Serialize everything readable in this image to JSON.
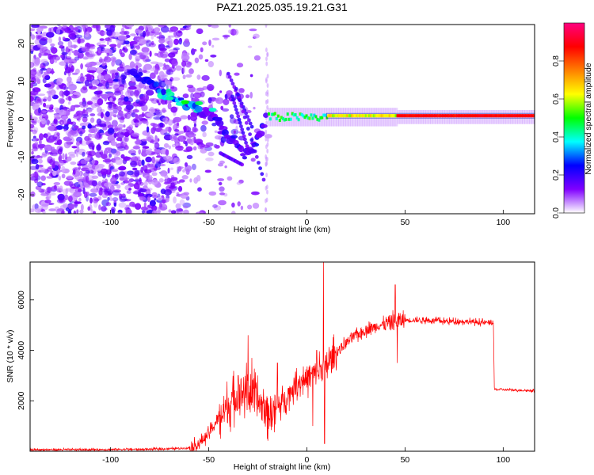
{
  "figure_title": "PAZ1.2025.035.19.21.G31",
  "chart_data": [
    {
      "type": "heatmap",
      "xlabel": "Height of straight line (km)",
      "ylabel": "Frequency (Hz)",
      "xlim": [
        -141,
        116
      ],
      "ylim": [
        -25,
        25
      ],
      "xticks": [
        -100,
        -50,
        0,
        50,
        100
      ],
      "yticks": [
        -20,
        -10,
        0,
        10,
        20
      ],
      "colorbar": {
        "label": "Normalized spectral amplitude",
        "range": [
          0.0,
          1.0
        ],
        "ticks": [
          "0.0",
          "0.2",
          "0.4",
          "0.6",
          "0.8"
        ],
        "colors": [
          "#ffffff",
          "#8000ff",
          "#0000ff",
          "#00ffff",
          "#00ff00",
          "#ffff00",
          "#ff8000",
          "#ff0000",
          "#ff0080"
        ]
      },
      "ridge": {
        "description_points_x": [
          -90,
          -80,
          -70,
          -60,
          -50,
          -40,
          -30,
          -20,
          -10,
          0,
          10,
          20,
          40,
          60,
          80,
          100,
          116
        ],
        "description_points_y": [
          13,
          9,
          6,
          4,
          1,
          -4,
          -10,
          1,
          1,
          0,
          1,
          0.5,
          0.8,
          0.8,
          0.8,
          0.8,
          0.8
        ]
      }
    },
    {
      "type": "line",
      "xlabel": "Height of straight line (km)",
      "ylabel": "SNR (10 * v/v)",
      "xlim": [
        -141,
        116
      ],
      "ylim": [
        0,
        7500
      ],
      "xticks": [
        -100,
        -50,
        0,
        50,
        100
      ],
      "yticks": [
        2000,
        4000,
        6000
      ],
      "color": "#ff0000",
      "anchors": [
        [
          -141,
          60
        ],
        [
          -100,
          70
        ],
        [
          -80,
          80
        ],
        [
          -70,
          100
        ],
        [
          -60,
          130
        ],
        [
          -55,
          300
        ],
        [
          -50,
          700
        ],
        [
          -45,
          1300
        ],
        [
          -40,
          1800
        ],
        [
          -35,
          2300
        ],
        [
          -30,
          2400
        ],
        [
          -25,
          2000
        ],
        [
          -20,
          1500
        ],
        [
          -15,
          1700
        ],
        [
          -10,
          2200
        ],
        [
          -5,
          2700
        ],
        [
          0,
          2900
        ],
        [
          5,
          3100
        ],
        [
          10,
          3400
        ],
        [
          15,
          3900
        ],
        [
          20,
          4300
        ],
        [
          25,
          4600
        ],
        [
          30,
          4800
        ],
        [
          35,
          4950
        ],
        [
          40,
          5050
        ],
        [
          45,
          5150
        ],
        [
          50,
          5200
        ],
        [
          60,
          5200
        ],
        [
          70,
          5150
        ],
        [
          80,
          5150
        ],
        [
          90,
          5100
        ],
        [
          95,
          5100
        ],
        [
          95.5,
          2450
        ],
        [
          116,
          2400
        ]
      ],
      "spikes": [
        [
          -30,
          4600
        ],
        [
          -28,
          3700
        ],
        [
          -35,
          3000
        ],
        [
          -15,
          3500
        ],
        [
          8.5,
          7500
        ],
        [
          9,
          300
        ],
        [
          3,
          1000
        ],
        [
          5,
          4000
        ],
        [
          45,
          6600
        ],
        [
          46,
          3500
        ]
      ]
    }
  ]
}
